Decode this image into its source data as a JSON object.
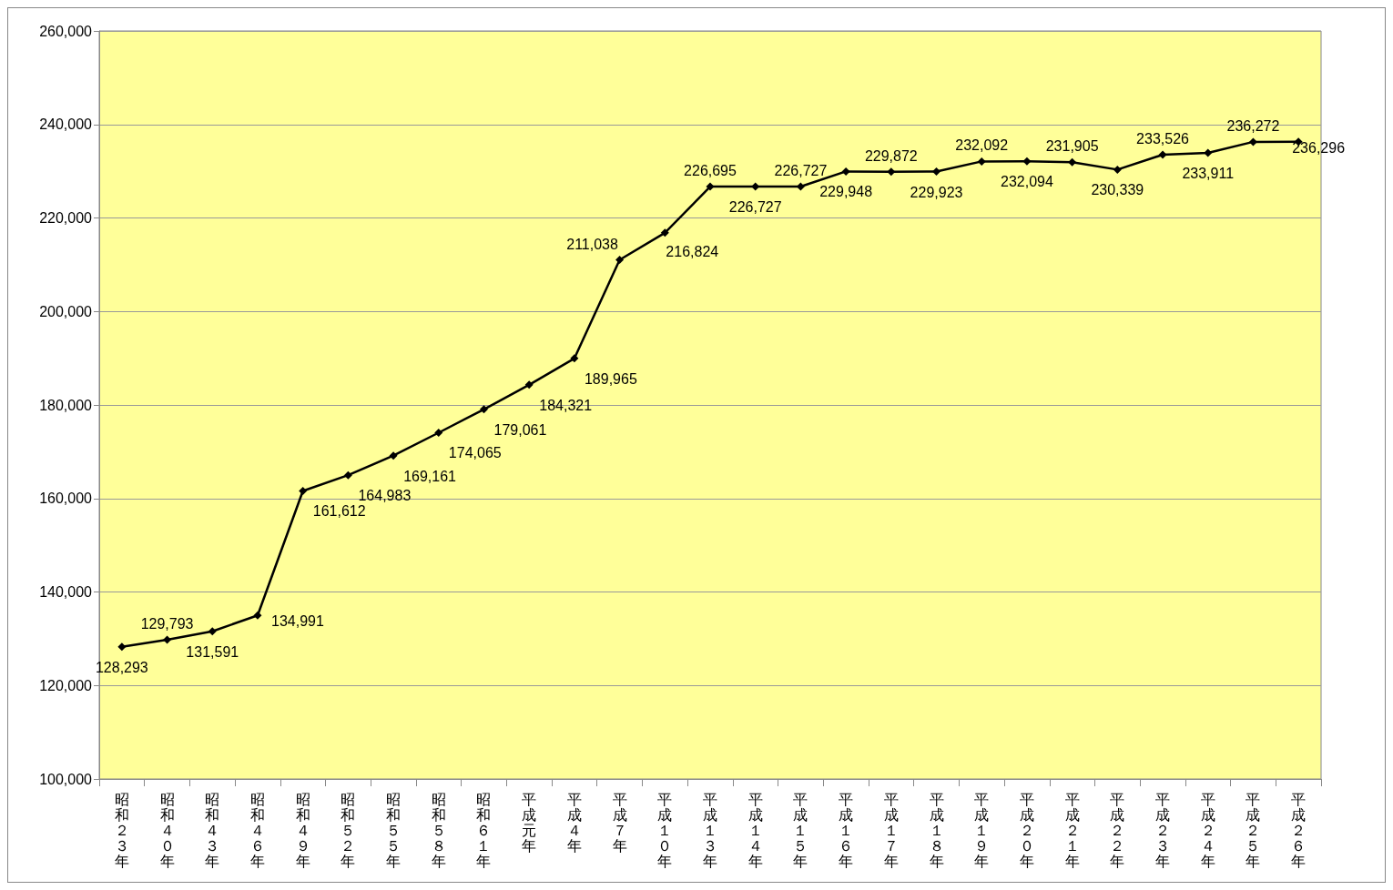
{
  "chart_data": {
    "type": "line",
    "categories": [
      "昭和２３年",
      "昭和４０年",
      "昭和４３年",
      "昭和４６年",
      "昭和４９年",
      "昭和５２年",
      "昭和５５年",
      "昭和５８年",
      "昭和６１年",
      "平成元年",
      "平成４年",
      "平成７年",
      "平成１０年",
      "平成１３年",
      "平成１４年",
      "平成１５年",
      "平成１６年",
      "平成１７年",
      "平成１８年",
      "平成１９年",
      "平成２０年",
      "平成２１年",
      "平成２２年",
      "平成２３年",
      "平成２４年",
      "平成２５年",
      "平成２６年"
    ],
    "series": [
      {
        "color": "#000000",
        "values": [
          128293,
          129793,
          131591,
          134991,
          161612,
          164983,
          169161,
          174065,
          179061,
          184321,
          189965,
          211038,
          216824,
          226695,
          226727,
          226727,
          229948,
          229872,
          229923,
          232092,
          232094,
          231905,
          230339,
          233526,
          233911,
          236272,
          236296
        ]
      }
    ],
    "ylim": [
      100000,
      260000
    ],
    "yticks": [
      {
        "value": 100000,
        "label": "100,000"
      },
      {
        "value": 120000,
        "label": "120,000"
      },
      {
        "value": 140000,
        "label": "140,000"
      },
      {
        "value": 160000,
        "label": "160,000"
      },
      {
        "value": 180000,
        "label": "180,000"
      },
      {
        "value": 200000,
        "label": "200,000"
      },
      {
        "value": 220000,
        "label": "220,000"
      },
      {
        "value": 240000,
        "label": "240,000"
      },
      {
        "value": 260000,
        "label": "260,000"
      }
    ],
    "value_labels": [
      "128,293",
      "129,793",
      "131,591",
      "134,991",
      "161,612",
      "164,983",
      "169,161",
      "174,065",
      "179,061",
      "184,321",
      "189,965",
      "211,038",
      "216,824",
      "226,695",
      "226,727",
      "226,727",
      "229,948",
      "229,872",
      "229,923",
      "232,092",
      "232,094",
      "231,905",
      "230,339",
      "233,526",
      "233,911",
      "236,272",
      "236,296"
    ],
    "grid": "y",
    "marker": "diamond",
    "line_style": "solid"
  }
}
